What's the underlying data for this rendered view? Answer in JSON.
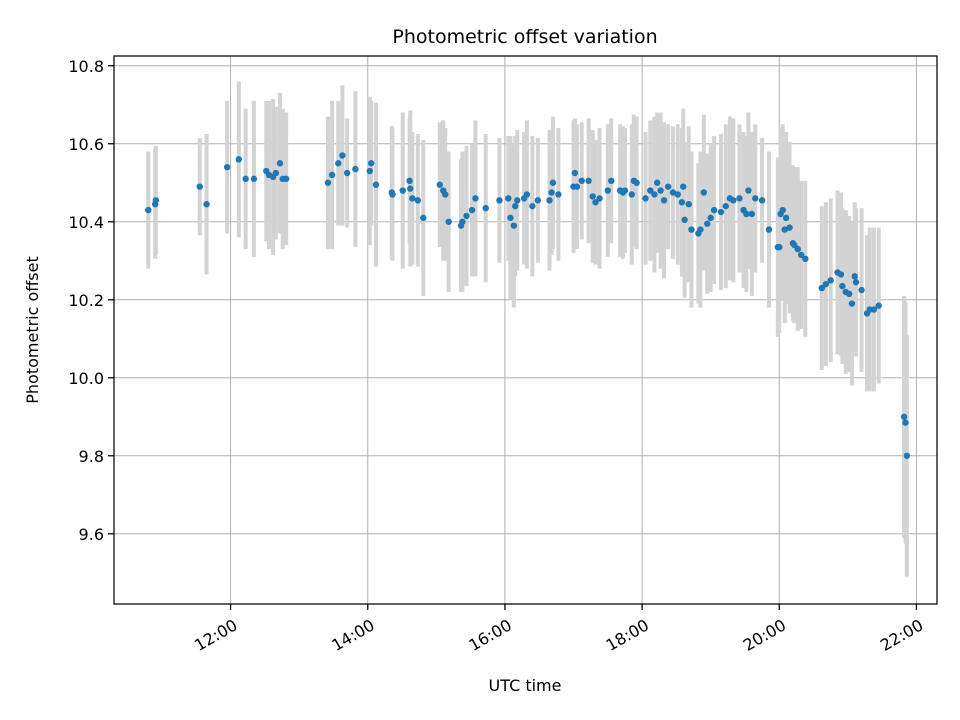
{
  "chart_data": {
    "type": "scatter",
    "title": "Photometric offset variation",
    "xlabel": "UTC time",
    "ylabel": "Photometric offset",
    "x_unit": "hours",
    "xlim": [
      10.3,
      22.3
    ],
    "ylim": [
      9.42,
      10.825
    ],
    "x_ticks": [
      {
        "value": 12,
        "label": "12:00"
      },
      {
        "value": 14,
        "label": "14:00"
      },
      {
        "value": 16,
        "label": "16:00"
      },
      {
        "value": 18,
        "label": "18:00"
      },
      {
        "value": 20,
        "label": "20:00"
      },
      {
        "value": 22,
        "label": "22:00"
      }
    ],
    "y_ticks": [
      {
        "value": 9.6,
        "label": "9.6"
      },
      {
        "value": 9.8,
        "label": "9.8"
      },
      {
        "value": 10.0,
        "label": "10.0"
      },
      {
        "value": 10.2,
        "label": "10.2"
      },
      {
        "value": 10.4,
        "label": "10.4"
      },
      {
        "value": 10.6,
        "label": "10.6"
      },
      {
        "value": 10.8,
        "label": "10.8"
      }
    ],
    "grid": true,
    "colors": {
      "point": "#1f77b4",
      "errorbar": "#d3d3d3"
    },
    "points": [
      [
        10.8,
        10.43,
        0.15
      ],
      [
        10.9,
        10.445,
        0.14
      ],
      [
        10.91,
        10.455,
        0.14
      ],
      [
        11.55,
        10.49,
        0.125
      ],
      [
        11.65,
        10.445,
        0.18
      ],
      [
        11.95,
        10.54,
        0.17
      ],
      [
        12.12,
        10.56,
        0.2
      ],
      [
        12.22,
        10.51,
        0.18
      ],
      [
        12.34,
        10.51,
        0.2
      ],
      [
        12.52,
        10.53,
        0.18
      ],
      [
        12.56,
        10.52,
        0.19
      ],
      [
        12.62,
        10.515,
        0.2
      ],
      [
        12.66,
        10.525,
        0.17
      ],
      [
        12.72,
        10.55,
        0.18
      ],
      [
        12.76,
        10.51,
        0.18
      ],
      [
        12.81,
        10.51,
        0.17
      ],
      [
        13.42,
        10.5,
        0.17
      ],
      [
        13.48,
        10.52,
        0.19
      ],
      [
        13.57,
        10.55,
        0.16
      ],
      [
        13.63,
        10.57,
        0.18
      ],
      [
        13.7,
        10.525,
        0.14
      ],
      [
        13.82,
        10.535,
        0.2
      ],
      [
        14.03,
        10.53,
        0.19
      ],
      [
        14.05,
        10.55,
        0.16
      ],
      [
        14.12,
        10.495,
        0.21
      ],
      [
        14.35,
        10.475,
        0.17
      ],
      [
        14.36,
        10.47,
        0.17
      ],
      [
        14.51,
        10.48,
        0.2
      ],
      [
        14.61,
        10.505,
        0.16
      ],
      [
        14.62,
        10.485,
        0.2
      ],
      [
        14.65,
        10.46,
        0.17
      ],
      [
        14.73,
        10.455,
        0.17
      ],
      [
        14.81,
        10.41,
        0.2
      ],
      [
        15.05,
        10.495,
        0.16
      ],
      [
        15.1,
        10.48,
        0.18
      ],
      [
        15.13,
        10.47,
        0.17
      ],
      [
        15.18,
        10.4,
        0.18
      ],
      [
        15.36,
        10.39,
        0.17
      ],
      [
        15.38,
        10.4,
        0.18
      ],
      [
        15.44,
        10.415,
        0.18
      ],
      [
        15.52,
        10.43,
        0.17
      ],
      [
        15.57,
        10.46,
        0.2
      ],
      [
        15.72,
        10.435,
        0.19
      ],
      [
        15.92,
        10.455,
        0.16
      ],
      [
        16.05,
        10.46,
        0.16
      ],
      [
        16.08,
        10.41,
        0.21
      ],
      [
        16.13,
        10.39,
        0.21
      ],
      [
        16.15,
        10.44,
        0.18
      ],
      [
        16.18,
        10.455,
        0.18
      ],
      [
        16.28,
        10.46,
        0.17
      ],
      [
        16.32,
        10.47,
        0.19
      ],
      [
        16.4,
        10.44,
        0.18
      ],
      [
        16.48,
        10.455,
        0.16
      ],
      [
        16.65,
        10.455,
        0.18
      ],
      [
        16.68,
        10.475,
        0.16
      ],
      [
        16.7,
        10.5,
        0.17
      ],
      [
        16.78,
        10.47,
        0.17
      ],
      [
        17.0,
        10.49,
        0.17
      ],
      [
        17.02,
        10.525,
        0.14
      ],
      [
        17.05,
        10.49,
        0.16
      ],
      [
        17.12,
        10.505,
        0.15
      ],
      [
        17.22,
        10.505,
        0.16
      ],
      [
        17.28,
        10.465,
        0.17
      ],
      [
        17.32,
        10.45,
        0.16
      ],
      [
        17.38,
        10.46,
        0.18
      ],
      [
        17.5,
        10.48,
        0.17
      ],
      [
        17.55,
        10.505,
        0.16
      ],
      [
        17.68,
        10.48,
        0.17
      ],
      [
        17.72,
        10.475,
        0.17
      ],
      [
        17.75,
        10.48,
        0.16
      ],
      [
        17.85,
        10.47,
        0.18
      ],
      [
        17.88,
        10.505,
        0.17
      ],
      [
        17.92,
        10.5,
        0.17
      ],
      [
        18.05,
        10.46,
        0.17
      ],
      [
        18.12,
        10.48,
        0.18
      ],
      [
        18.18,
        10.47,
        0.2
      ],
      [
        18.22,
        10.5,
        0.18
      ],
      [
        18.27,
        10.48,
        0.2
      ],
      [
        18.32,
        10.455,
        0.2
      ],
      [
        18.38,
        10.49,
        0.16
      ],
      [
        18.45,
        10.475,
        0.17
      ],
      [
        18.52,
        10.47,
        0.18
      ],
      [
        18.58,
        10.45,
        0.19
      ],
      [
        18.6,
        10.49,
        0.2
      ],
      [
        18.62,
        10.405,
        0.2
      ],
      [
        18.68,
        10.445,
        0.2
      ],
      [
        18.72,
        10.38,
        0.2
      ],
      [
        18.82,
        10.37,
        0.18
      ],
      [
        18.85,
        10.38,
        0.2
      ],
      [
        18.9,
        10.475,
        0.2
      ],
      [
        18.95,
        10.395,
        0.18
      ],
      [
        19.0,
        10.41,
        0.19
      ],
      [
        19.05,
        10.43,
        0.19
      ],
      [
        19.15,
        10.425,
        0.2
      ],
      [
        19.22,
        10.44,
        0.21
      ],
      [
        19.28,
        10.46,
        0.21
      ],
      [
        19.33,
        10.455,
        0.21
      ],
      [
        19.42,
        10.46,
        0.19
      ],
      [
        19.48,
        10.43,
        0.2
      ],
      [
        19.52,
        10.42,
        0.2
      ],
      [
        19.55,
        10.48,
        0.2
      ],
      [
        19.6,
        10.42,
        0.21
      ],
      [
        19.65,
        10.46,
        0.19
      ],
      [
        19.75,
        10.455,
        0.16
      ],
      [
        19.85,
        10.38,
        0.2
      ],
      [
        19.98,
        10.335,
        0.23
      ],
      [
        20.0,
        10.335,
        0.22
      ],
      [
        20.02,
        10.42,
        0.22
      ],
      [
        20.05,
        10.43,
        0.22
      ],
      [
        20.08,
        10.38,
        0.24
      ],
      [
        20.1,
        10.41,
        0.22
      ],
      [
        20.15,
        10.385,
        0.22
      ],
      [
        20.2,
        10.345,
        0.2
      ],
      [
        20.22,
        10.34,
        0.2
      ],
      [
        20.27,
        10.33,
        0.21
      ],
      [
        20.32,
        10.315,
        0.19
      ],
      [
        20.38,
        10.305,
        0.2
      ],
      [
        20.62,
        10.23,
        0.21
      ],
      [
        20.68,
        10.24,
        0.21
      ],
      [
        20.75,
        10.25,
        0.21
      ],
      [
        20.85,
        10.27,
        0.21
      ],
      [
        20.9,
        10.265,
        0.21
      ],
      [
        20.92,
        10.235,
        0.2
      ],
      [
        20.97,
        10.22,
        0.21
      ],
      [
        21.02,
        10.215,
        0.2
      ],
      [
        21.06,
        10.19,
        0.21
      ],
      [
        21.1,
        10.26,
        0.19
      ],
      [
        21.12,
        10.245,
        0.19
      ],
      [
        21.2,
        10.225,
        0.21
      ],
      [
        21.28,
        10.165,
        0.2
      ],
      [
        21.32,
        10.175,
        0.21
      ],
      [
        21.38,
        10.175,
        0.21
      ],
      [
        21.45,
        10.185,
        0.2
      ],
      [
        21.82,
        9.9,
        0.31
      ],
      [
        21.84,
        9.885,
        0.31
      ],
      [
        21.86,
        9.8,
        0.31
      ]
    ]
  }
}
